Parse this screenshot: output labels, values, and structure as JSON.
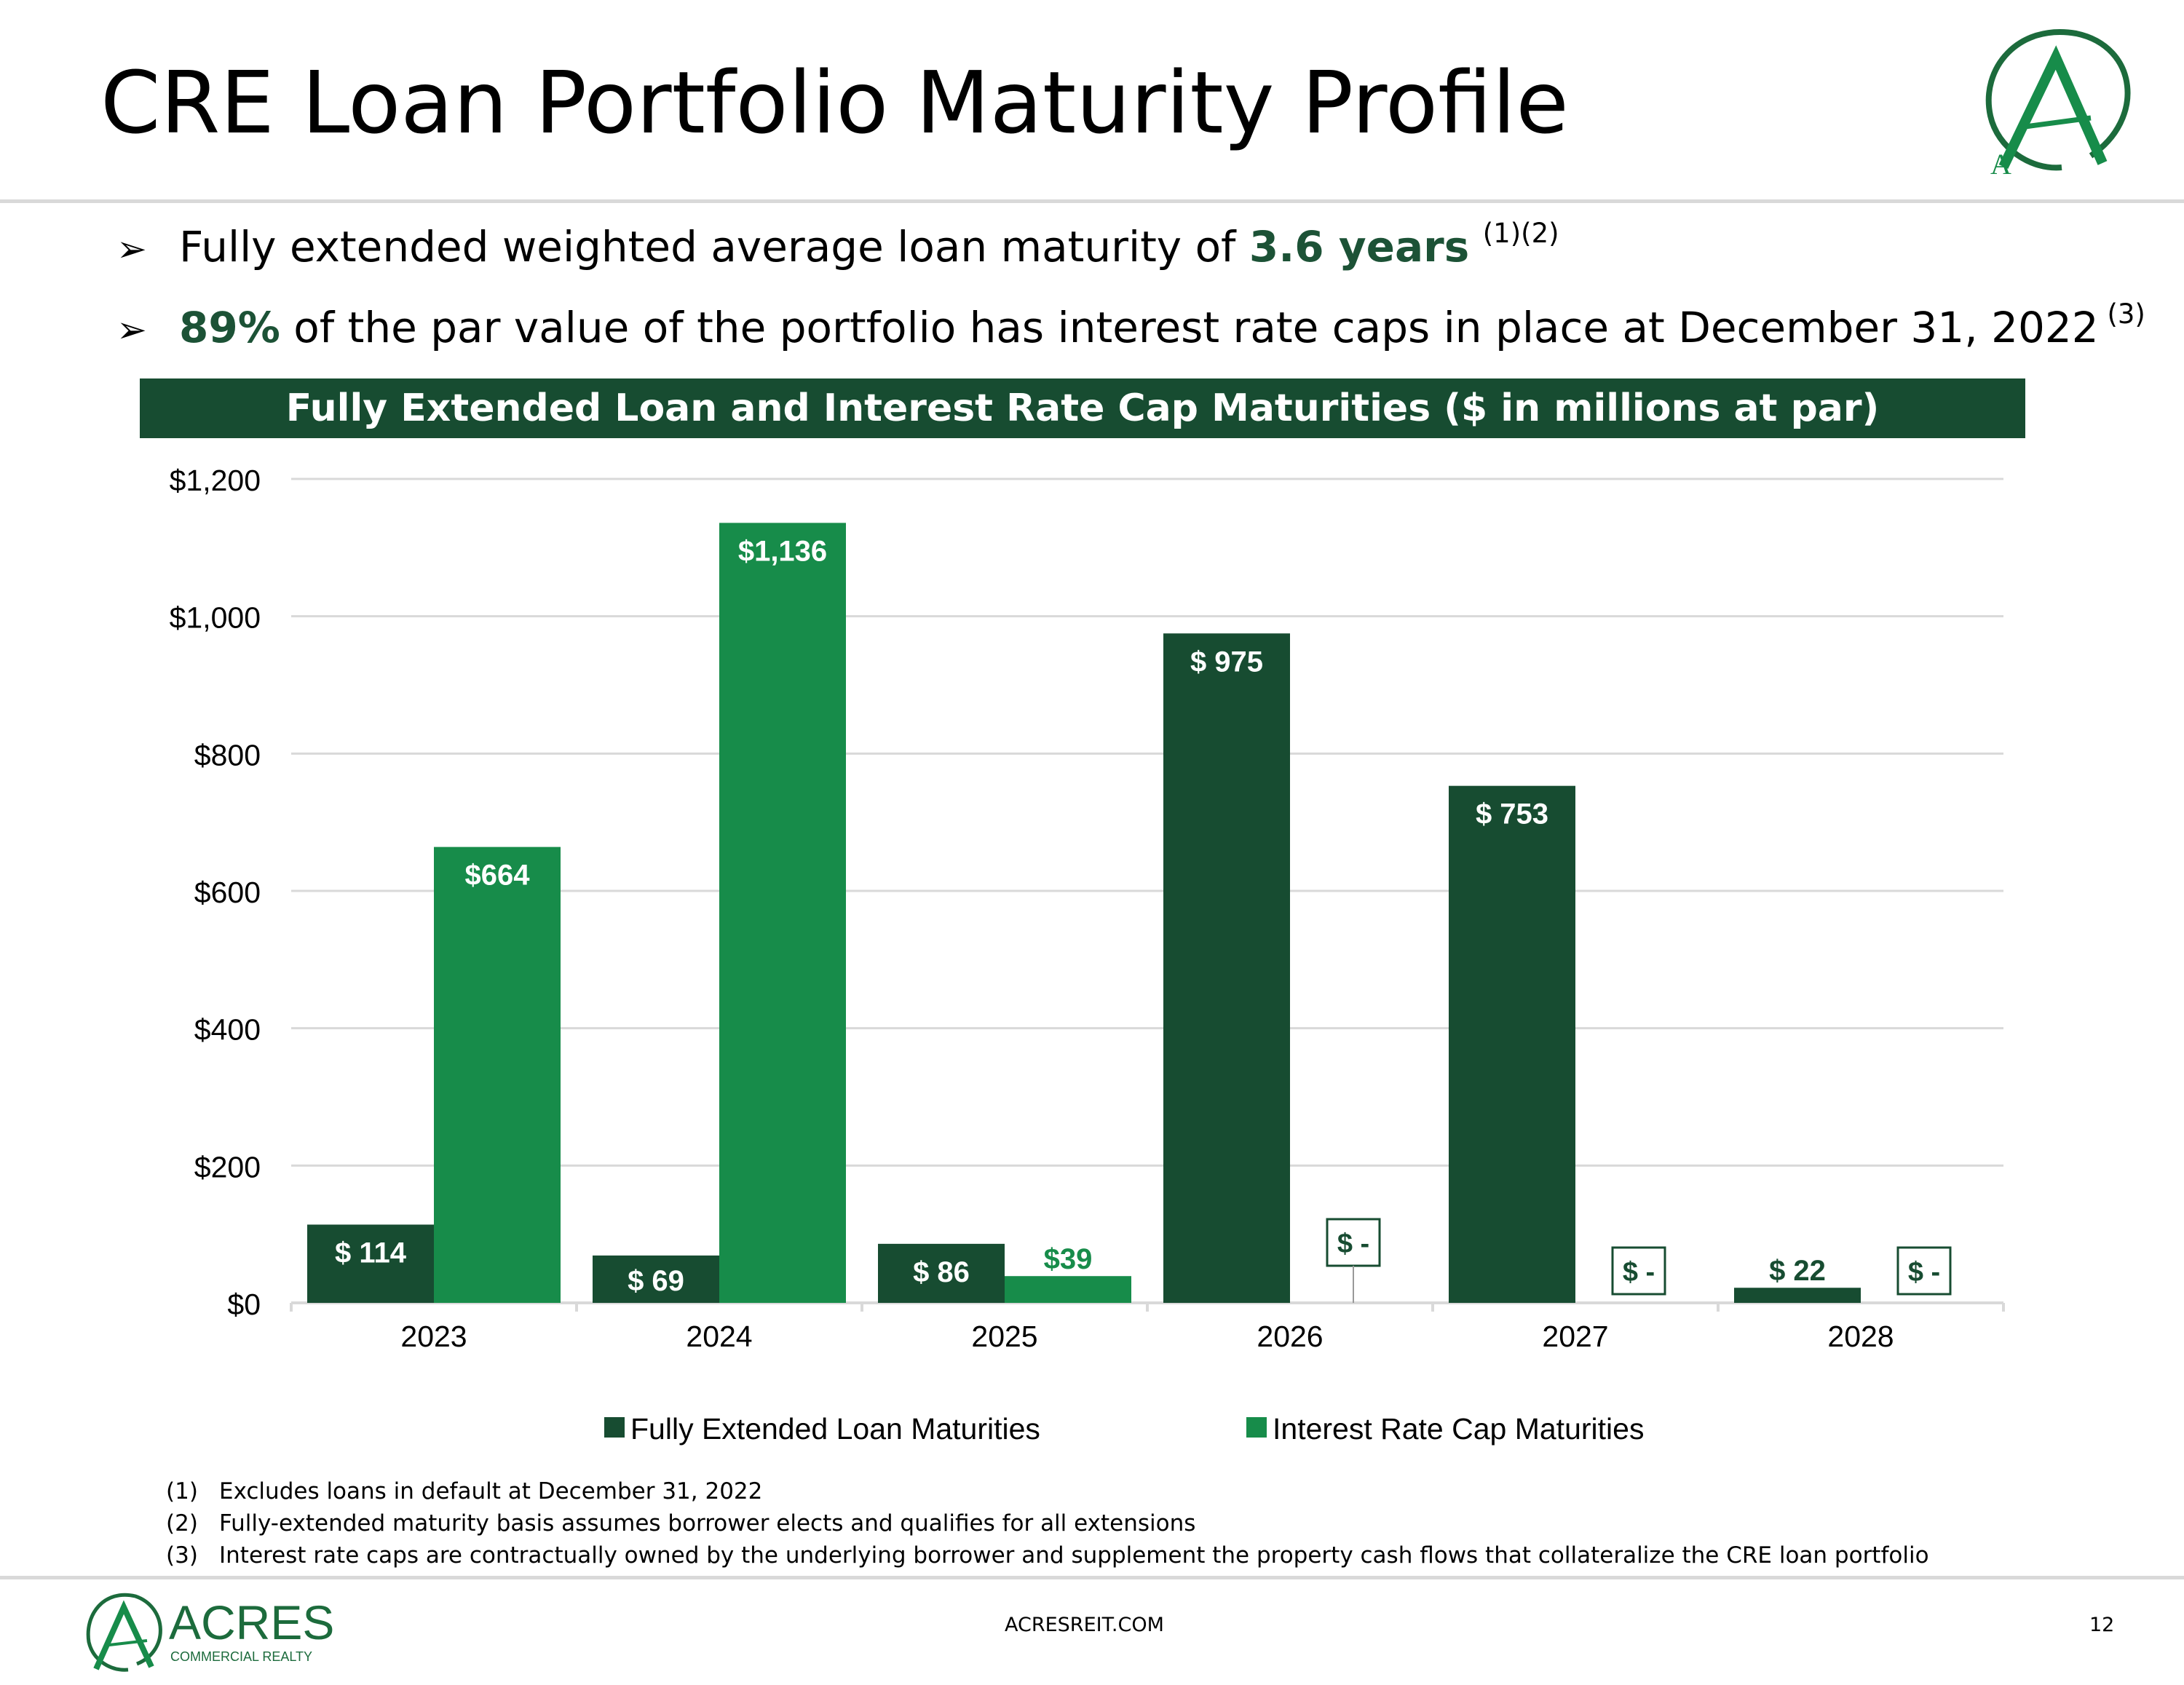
{
  "title": "CRE Loan Portfolio Maturity Profile",
  "bullets": [
    {
      "arrow": "➢",
      "pre": "Fully extended weighted average loan maturity of ",
      "highlight": "3.6 years",
      "post": " ",
      "sup": "(1)(2)"
    },
    {
      "arrow": "➢",
      "pre": "",
      "highlight": "89%",
      "post": " of the par value of the portfolio has interest rate caps in place at December 31, 2022",
      "sup": " (3)"
    }
  ],
  "banner": "Fully Extended Loan and Interest Rate Cap Maturities ($ in millions at par)",
  "chart_data": {
    "type": "bar",
    "title": "Fully Extended Loan and Interest Rate Cap Maturities ($ in millions at par)",
    "categories": [
      "2023",
      "2024",
      "2025",
      "2026",
      "2027",
      "2028"
    ],
    "series": [
      {
        "name": "Fully Extended Loan Maturities",
        "color": "#174c31",
        "values": [
          114,
          69,
          86,
          975,
          753,
          22
        ],
        "labels": [
          "$ 114",
          "$ 69",
          "$ 86",
          "$ 975",
          "$ 753",
          "$ 22"
        ]
      },
      {
        "name": "Interest Rate Cap Maturities",
        "color": "#178c4a",
        "values": [
          664,
          1136,
          39,
          0,
          0,
          0
        ],
        "labels": [
          "$664",
          "$1,136",
          "$39",
          "$ -",
          "$ -",
          "$ -"
        ]
      }
    ],
    "ylim": [
      0,
      1200
    ],
    "yticks": [
      0,
      200,
      400,
      600,
      800,
      1000,
      1200
    ],
    "ytick_labels": [
      "$0",
      "$200",
      "$400",
      "$600",
      "$800",
      "$1,000",
      "$1,200"
    ],
    "grid": true,
    "legend": "bottom-center",
    "xlabel": "",
    "ylabel": ""
  },
  "footnotes": [
    {
      "num": "(1)",
      "text": "Excludes loans in default at December 31, 2022"
    },
    {
      "num": "(2)",
      "text": "Fully-extended maturity basis assumes borrower elects and qualifies for all extensions"
    },
    {
      "num": "(3)",
      "text": "Interest rate caps are contractually owned by the underlying borrower and supplement the property cash flows that collateralize the CRE loan portfolio"
    }
  ],
  "logo": {
    "name": "ACRES",
    "tagline": "COMMERCIAL REALTY",
    "letter": "A"
  },
  "footer": {
    "site": "ACRESREIT.COM",
    "page": "12"
  },
  "colors": {
    "dark_green": "#174c31",
    "bright_green": "#178c4a",
    "grid": "#d9d9d9"
  }
}
